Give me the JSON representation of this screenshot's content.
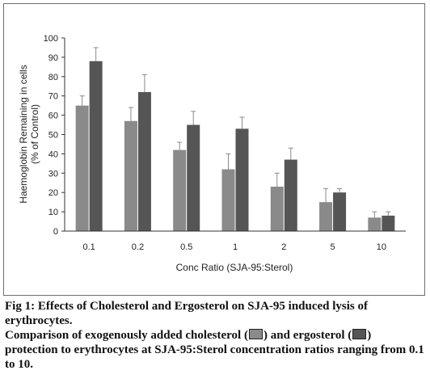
{
  "chart_data": {
    "type": "bar",
    "categories": [
      "0.1",
      "0.2",
      "0.5",
      "1",
      "2",
      "5",
      "10"
    ],
    "series": [
      {
        "values": [
          65,
          57,
          42,
          32,
          23,
          15,
          7
        ],
        "errors": [
          5,
          7,
          4,
          8,
          7,
          7,
          3
        ],
        "color": "#8a8a8a"
      },
      {
        "values": [
          88,
          72,
          55,
          53,
          37,
          20,
          8
        ],
        "errors": [
          7,
          9,
          7,
          6,
          6,
          2,
          2
        ],
        "color": "#555555"
      }
    ],
    "ylabel_line1": "Haemoglobin Remaining in cells",
    "ylabel_line2": "(% of Control)",
    "xlabel": "Conc Ratio (SJA-95:Sterol)",
    "ylim": [
      0,
      100
    ],
    "yticks": [
      "0",
      "10",
      "20",
      "30",
      "40",
      "50",
      "60",
      "70",
      "80",
      "90",
      "100"
    ],
    "error_bars": "upper"
  },
  "caption": {
    "title": "Fig 1: Effects of Cholesterol and Ergosterol on SJA-95 induced lysis of erythrocytes.",
    "part1": "Comparison of exogenously added cholesterol (",
    "part2": ") and ergosterol (",
    "part3": ") protection to erythrocytes at SJA-95:Sterol concentration ratios ranging from 0.1 to 10."
  }
}
